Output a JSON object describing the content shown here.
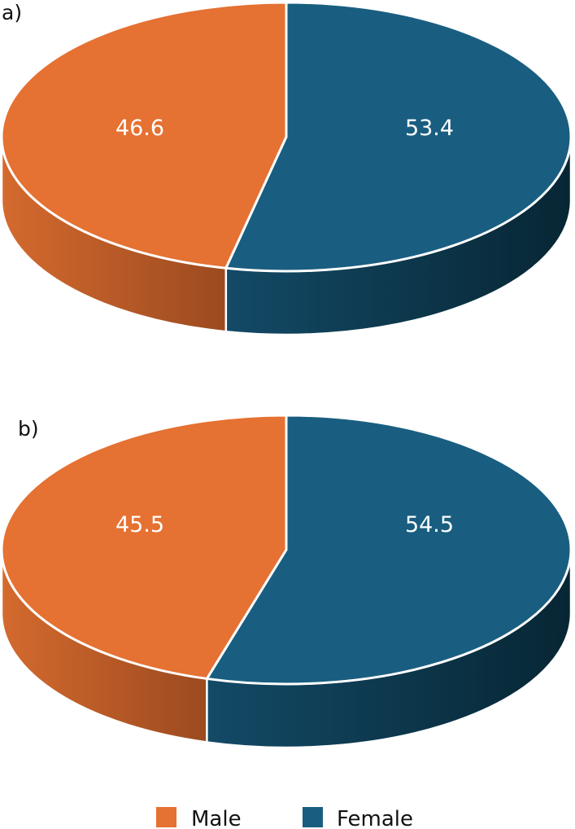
{
  "chart_data": [
    {
      "type": "pie",
      "panel_label": "a)",
      "categories": [
        "Male",
        "Female"
      ],
      "values": [
        46.6,
        53.4
      ],
      "value_labels": [
        "46.6",
        "53.4"
      ]
    },
    {
      "type": "pie",
      "panel_label": "b)",
      "categories": [
        "Male",
        "Female"
      ],
      "values": [
        45.5,
        54.5
      ],
      "value_labels": [
        "45.5",
        "54.5"
      ]
    }
  ],
  "legend": {
    "items": [
      {
        "label": "Male",
        "color": "#E57132"
      },
      {
        "label": "Female",
        "color": "#195E80"
      }
    ],
    "placement": "bottom-center"
  },
  "colors": {
    "male_top": "#E57132",
    "female_top": "#195E80",
    "male_side": "#B85524",
    "female_side": "#0E3A52"
  }
}
